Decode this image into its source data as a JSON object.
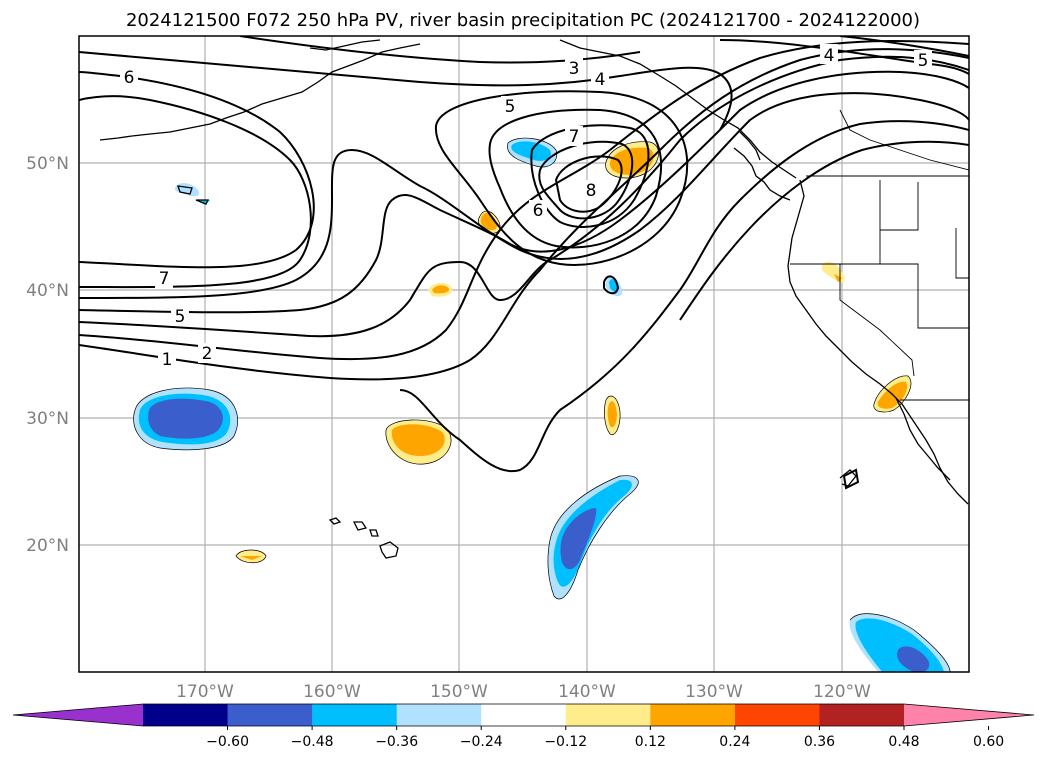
{
  "title": "2024121500 F072 250 hPa PV, river basin precipitation PC (2024121700 - 2024122000)",
  "lat_labels": [
    "20°N",
    "30°N",
    "40°N",
    "50°N"
  ],
  "lon_labels": [
    "170°W",
    "160°W",
    "150°W",
    "140°W",
    "130°W",
    "120°W"
  ],
  "colorbar": {
    "tick_labels": [
      "−0.60",
      "−0.48",
      "−0.36",
      "−0.24",
      "−0.12",
      "0.12",
      "0.24",
      "0.36",
      "0.48",
      "0.60"
    ],
    "colors": [
      "#9932cc",
      "#00008b",
      "#3a5fcd",
      "#00bfff",
      "#b0e2ff",
      "#ffffff",
      "#ffec8b",
      "#ffa500",
      "#ff4500",
      "#b22222",
      "#ff82ab"
    ]
  },
  "contour_labels": [
    "6",
    "3",
    "4",
    "4",
    "5",
    "5",
    "7",
    "8",
    "6",
    "7",
    "5",
    "2",
    "1"
  ],
  "colors": {
    "contour": "#000000",
    "grid": "#b0b0b0",
    "coast": "#000000",
    "tick_text": "#808080"
  }
}
